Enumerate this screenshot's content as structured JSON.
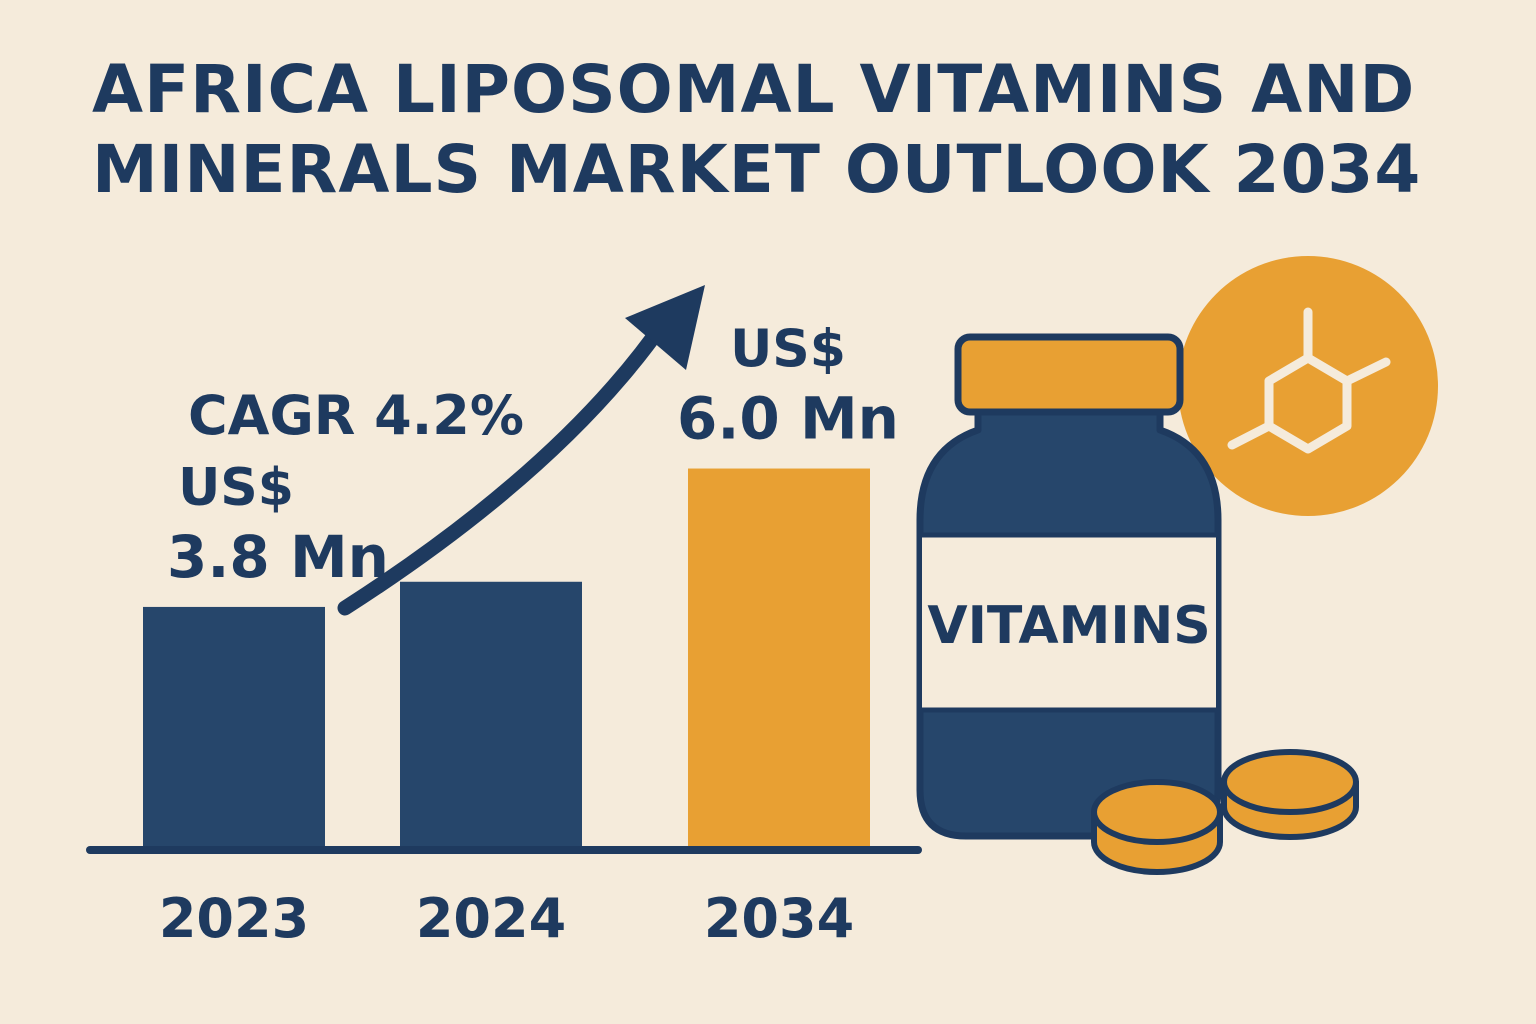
{
  "title_lines": [
    "AFRICA LIPOSOMAL VITAMINS AND",
    "MINERALS MARKET OUTLOOK 2034"
  ],
  "cagr_label": "CAGR 4.2%",
  "bottle_label": "VITAMINS",
  "colors": {
    "navy": "#1e3a5f",
    "bar_navy": "#26466b",
    "orange": "#e8a033",
    "background": "#f5ebdb",
    "label_white": "#f5ebdb"
  },
  "icons": [
    "trend-arrow-icon",
    "vitamin-bottle-icon",
    "molecule-icon",
    "coin-stack-icon"
  ],
  "chart_data": {
    "type": "bar",
    "title": "",
    "categories": [
      "2023",
      "2024",
      "2034"
    ],
    "values": [
      3.8,
      4.2,
      6.0
    ],
    "value_labels": [
      {
        "line1": "US$",
        "line2": "3.8 Mn"
      },
      null,
      {
        "line1": "US$",
        "line2": "6.0 Mn"
      }
    ],
    "unit": "US$ Mn",
    "bar_colors": [
      "#26466b",
      "#26466b",
      "#e8a033"
    ],
    "ylim": [
      0,
      10.3
    ],
    "grid": false,
    "legend": "none"
  }
}
